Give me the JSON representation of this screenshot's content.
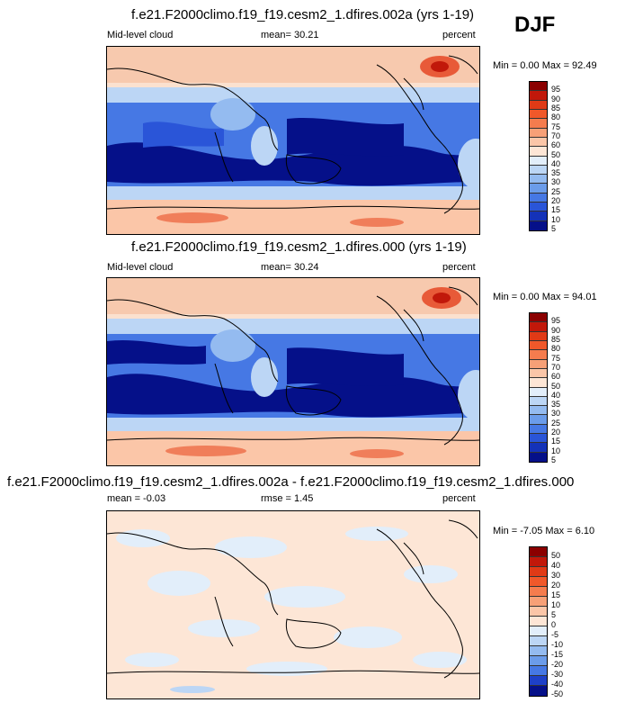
{
  "season": "DJF",
  "panels": [
    {
      "title": "f.e21.F2000climo.f19_f19.cesm2_1.dfires.002a (yrs 1-19)",
      "left_label": "Mid-level cloud",
      "center_label": "mean=  30.21",
      "right_label": "percent",
      "minmax": "Min =   0.00 Max =  92.49",
      "colorbar_labels": [
        "95",
        "90",
        "85",
        "80",
        "75",
        "70",
        "60",
        "50",
        "40",
        "35",
        "30",
        "25",
        "20",
        "15",
        "10",
        "5"
      ],
      "colorbar_colors": [
        "#8b0000",
        "#c1180a",
        "#e03a16",
        "#f0582a",
        "#f57c4e",
        "#f7a077",
        "#fbc6a8",
        "#fde6d6",
        "#e2eefa",
        "#bcd6f5",
        "#94bbf0",
        "#6b9cea",
        "#4678e4",
        "#2a55d8",
        "#1432b8",
        "#051089"
      ]
    },
    {
      "title": "f.e21.F2000climo.f19_f19.cesm2_1.dfires.000 (yrs 1-19)",
      "left_label": "Mid-level cloud",
      "center_label": "mean=  30.24",
      "right_label": "percent",
      "minmax": "Min =   0.00 Max =  94.01",
      "colorbar_labels": [
        "95",
        "90",
        "85",
        "80",
        "75",
        "70",
        "60",
        "50",
        "40",
        "35",
        "30",
        "25",
        "20",
        "15",
        "10",
        "5"
      ],
      "colorbar_colors": [
        "#8b0000",
        "#c1180a",
        "#e03a16",
        "#f0582a",
        "#f57c4e",
        "#f7a077",
        "#fbc6a8",
        "#fde6d6",
        "#e2eefa",
        "#bcd6f5",
        "#94bbf0",
        "#6b9cea",
        "#4678e4",
        "#2a55d8",
        "#1432b8",
        "#051089"
      ]
    },
    {
      "title": "f.e21.F2000climo.f19_f19.cesm2_1.dfires.002a - f.e21.F2000climo.f19_f19.cesm2_1.dfires.000",
      "left_label": "mean =  -0.03",
      "center_label": "rmse =   1.45",
      "right_label": "percent",
      "minmax": "Min =  -7.05 Max =   6.10",
      "colorbar_labels": [
        "50",
        "40",
        "30",
        "20",
        "15",
        "10",
        "5",
        "0",
        "-5",
        "-10",
        "-15",
        "-20",
        "-30",
        "-40",
        "-50"
      ],
      "colorbar_colors": [
        "#8b0000",
        "#c1180a",
        "#e03a16",
        "#f0582a",
        "#f57c4e",
        "#f7a077",
        "#fbc6a8",
        "#fde6d6",
        "#e2eefa",
        "#bcd6f5",
        "#94bbf0",
        "#6b9cea",
        "#4678e4",
        "#1e40c8",
        "#051089"
      ]
    }
  ]
}
